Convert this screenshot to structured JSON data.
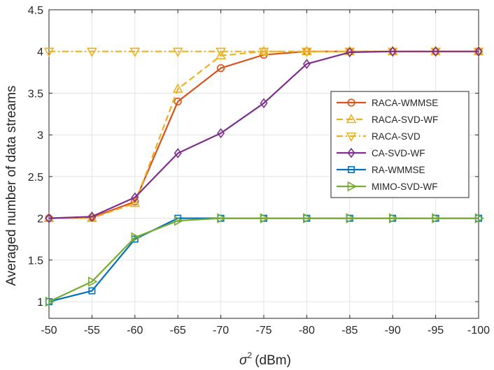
{
  "chart_data": {
    "type": "line",
    "title": "",
    "xlabel": "(dBm)",
    "xlabel_symbol": "σ",
    "xlabel_superscript": "2",
    "ylabel": "Averaged number of data streams",
    "x": [
      -50,
      -55,
      -60,
      -65,
      -70,
      -75,
      -80,
      -85,
      -90,
      -95,
      -100
    ],
    "x_ticks": [
      "-50",
      "-55",
      "-60",
      "-65",
      "-70",
      "-75",
      "-80",
      "-85",
      "-90",
      "-95",
      "-100"
    ],
    "ylim": [
      0.8,
      4.5
    ],
    "y_ticks": [
      1,
      1.5,
      2,
      2.5,
      3,
      3.5,
      4,
      4.5
    ],
    "y_tick_labels": [
      "1",
      "1.5",
      "2",
      "2.5",
      "3",
      "3.5",
      "4",
      "4.5"
    ],
    "grid": true,
    "legend_position": "right-middle",
    "series": [
      {
        "name": "RACA-WMMSE",
        "color": "#D95319",
        "marker": "circle",
        "dash": "solid",
        "values": [
          2.0,
          2.01,
          2.2,
          3.4,
          3.8,
          3.96,
          4.0,
          4.0,
          4.0,
          4.0,
          4.0
        ]
      },
      {
        "name": "RACA-SVD-WF",
        "color": "#EDB120",
        "marker": "triangle-up",
        "dash": "dashed",
        "values": [
          2.0,
          2.0,
          2.18,
          3.55,
          3.95,
          4.0,
          4.0,
          4.0,
          4.0,
          4.0,
          4.0
        ]
      },
      {
        "name": "RACA-SVD",
        "color": "#EDB120",
        "marker": "triangle-down",
        "dash": "dashdot",
        "values": [
          4.0,
          4.0,
          4.0,
          4.0,
          4.0,
          4.0,
          4.0,
          4.0,
          4.0,
          4.0,
          4.0
        ]
      },
      {
        "name": "CA-SVD-WF",
        "color": "#7E2F8E",
        "marker": "diamond",
        "dash": "solid",
        "values": [
          2.0,
          2.02,
          2.25,
          2.78,
          3.02,
          3.38,
          3.85,
          3.99,
          4.0,
          4.0,
          4.0
        ]
      },
      {
        "name": "RA-WMMSE",
        "color": "#0072BD",
        "marker": "square",
        "dash": "solid",
        "values": [
          1.0,
          1.13,
          1.75,
          2.0,
          2.0,
          2.0,
          2.0,
          2.0,
          2.0,
          2.0,
          2.0
        ]
      },
      {
        "name": "MIMO-SVD-WF",
        "color": "#77AC30",
        "marker": "triangle-right",
        "dash": "solid",
        "values": [
          1.0,
          1.24,
          1.77,
          1.97,
          2.0,
          2.0,
          2.0,
          2.0,
          2.0,
          2.0,
          2.0
        ]
      }
    ]
  }
}
